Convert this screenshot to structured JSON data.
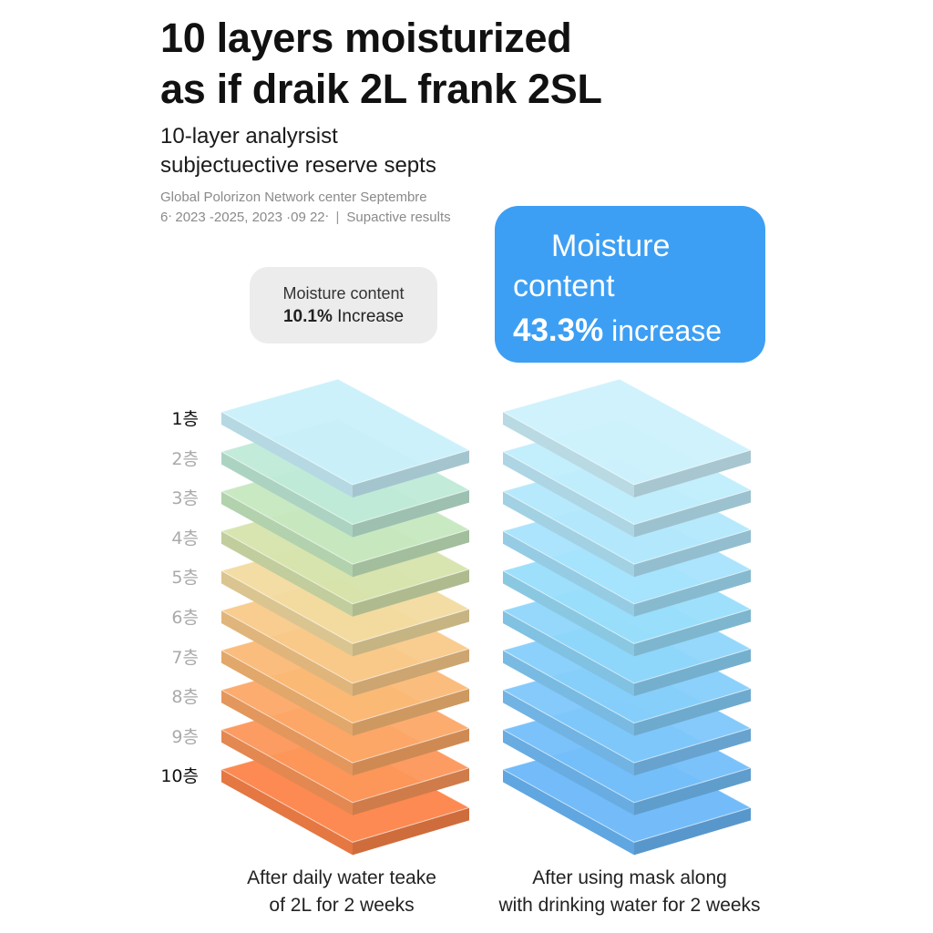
{
  "header": {
    "title_line1": "10 layers moisturized",
    "title_line2": "as if draik 2L frank 2SL",
    "subtitle_line1": "10-layer analyrsist",
    "subtitle_line2": "subjectuective reserve septs",
    "source_line1": "Global Polorizon Network center  Septembre",
    "source_line2_a": "6ᐧ 2023 -2025, 2023 ·09  22ᐧ",
    "source_line2_sep": "|",
    "source_line2_b": "Supactive results"
  },
  "badges": {
    "left": {
      "label": "Moisture content",
      "value": "10.1%",
      "suffix": "Increase"
    },
    "right": {
      "label_line1": "Moisture",
      "label_line2": "content",
      "value": "43.3%",
      "suffix": "increase"
    }
  },
  "layers": {
    "labels": [
      "1층",
      "2층",
      "3층",
      "4층",
      "5층",
      "6층",
      "7층",
      "8층",
      "9층",
      "10층"
    ],
    "left_colors": [
      "#c9f0fb",
      "#bfead8",
      "#c6e8c0",
      "#d6e4ad",
      "#f2dba0",
      "#f9c98a",
      "#fbb976",
      "#fca867",
      "#fc975a",
      "#fd8449"
    ],
    "right_colors": [
      "#cdf1fc",
      "#c0edfc",
      "#b3e8fc",
      "#a6e3fc",
      "#99defb",
      "#8fd6fb",
      "#86cffb",
      "#7ec7fb",
      "#74bffa",
      "#6bb8f9"
    ]
  },
  "captions": {
    "left_line1": "After daily water teake",
    "left_line2": "of 2L for 2 weeks",
    "right_line1": "After using mask along",
    "right_line2": "with drinking water for 2 weeks"
  }
}
